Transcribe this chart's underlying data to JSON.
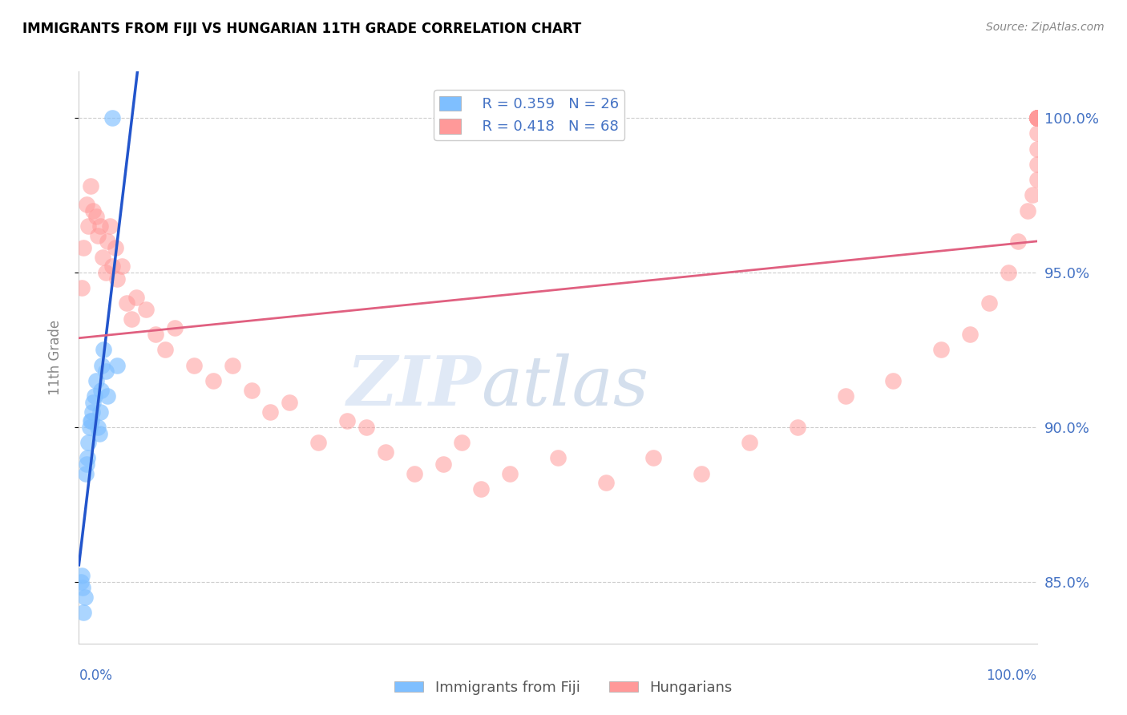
{
  "title": "IMMIGRANTS FROM FIJI VS HUNGARIAN 11TH GRADE CORRELATION CHART",
  "source": "Source: ZipAtlas.com",
  "ylabel": "11th Grade",
  "legend1_r": "0.359",
  "legend1_n": "26",
  "legend2_r": "0.418",
  "legend2_n": "68",
  "color_fiji": "#7fbfff",
  "color_hungarian": "#ff9999",
  "color_line_fiji": "#2255cc",
  "color_line_hungarian": "#e06080",
  "color_tick_label": "#4472c4",
  "watermark_zip": "ZIP",
  "watermark_atlas": "atlas",
  "fiji_x": [
    0.4,
    0.6,
    1.2,
    1.4,
    1.6,
    1.8,
    2.0,
    2.1,
    2.2,
    2.3,
    2.4,
    2.6,
    2.8,
    3.0,
    3.5,
    4.0,
    0.2,
    0.3,
    0.5,
    0.7,
    0.8,
    0.9,
    1.0,
    1.1,
    1.3,
    1.5
  ],
  "fiji_y": [
    84.8,
    84.5,
    90.2,
    90.5,
    91.0,
    91.5,
    90.0,
    89.8,
    90.5,
    91.2,
    92.0,
    92.5,
    91.8,
    91.0,
    100.0,
    92.0,
    85.0,
    85.2,
    84.0,
    88.5,
    88.8,
    89.0,
    89.5,
    90.0,
    90.2,
    90.8
  ],
  "hung_x": [
    0.3,
    0.5,
    0.8,
    1.0,
    1.2,
    1.5,
    1.8,
    2.0,
    2.2,
    2.5,
    2.8,
    3.0,
    3.2,
    3.5,
    3.8,
    4.0,
    4.5,
    5.0,
    5.5,
    6.0,
    7.0,
    8.0,
    9.0,
    10.0,
    12.0,
    14.0,
    16.0,
    18.0,
    20.0,
    22.0,
    25.0,
    28.0,
    30.0,
    32.0,
    35.0,
    38.0,
    40.0,
    42.0,
    45.0,
    50.0,
    55.0,
    60.0,
    65.0,
    70.0,
    75.0,
    80.0,
    85.0,
    90.0,
    93.0,
    95.0,
    97.0,
    98.0,
    99.0,
    99.5,
    100.0,
    100.0,
    100.0,
    100.0,
    100.0,
    100.0,
    100.0,
    100.0,
    100.0,
    100.0,
    100.0,
    100.0,
    100.0,
    100.0
  ],
  "hung_y": [
    94.5,
    95.8,
    97.2,
    96.5,
    97.8,
    97.0,
    96.8,
    96.2,
    96.5,
    95.5,
    95.0,
    96.0,
    96.5,
    95.2,
    95.8,
    94.8,
    95.2,
    94.0,
    93.5,
    94.2,
    93.8,
    93.0,
    92.5,
    93.2,
    92.0,
    91.5,
    92.0,
    91.2,
    90.5,
    90.8,
    89.5,
    90.2,
    90.0,
    89.2,
    88.5,
    88.8,
    89.5,
    88.0,
    88.5,
    89.0,
    88.2,
    89.0,
    88.5,
    89.5,
    90.0,
    91.0,
    91.5,
    92.5,
    93.0,
    94.0,
    95.0,
    96.0,
    97.0,
    97.5,
    98.0,
    98.5,
    99.0,
    99.5,
    100.0,
    100.0,
    100.0,
    100.0,
    100.0,
    100.0,
    100.0,
    100.0,
    100.0,
    100.0
  ],
  "xlim": [
    0,
    100
  ],
  "ylim": [
    83,
    101.5
  ],
  "yticks": [
    85,
    90,
    95,
    100
  ],
  "ytick_labels": [
    "85.0%",
    "90.0%",
    "95.0%",
    "100.0%"
  ]
}
